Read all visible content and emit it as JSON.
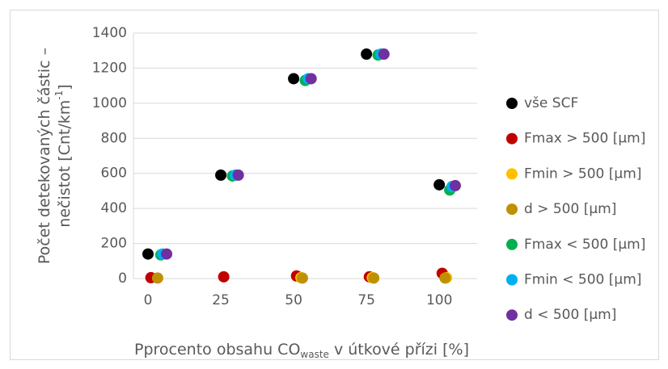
{
  "chart_data": {
    "type": "scatter",
    "y_label": [
      "Počet detekovaných částic –",
      "nečistot [Cnt/km",
      "-1",
      "]"
    ],
    "x_label": [
      "Pprocento obsahu CO",
      "waste",
      " v útkové přízi [%]"
    ],
    "xlim": [
      -5,
      113
    ],
    "xticks": [
      0,
      25,
      50,
      75,
      100
    ],
    "ylim": [
      0,
      1400
    ],
    "yticks": [
      0,
      200,
      400,
      600,
      800,
      1000,
      1200,
      1400
    ],
    "grid": true,
    "legend": "right",
    "series": [
      {
        "name": "vše SCF",
        "color": "#000000",
        "x": [
          0,
          25,
          50,
          75,
          100
        ],
        "values": [
          140,
          590,
          1140,
          1280,
          535
        ]
      },
      {
        "name": "Fmax > 500 [µm]",
        "color": "#c00000",
        "x": [
          1,
          26,
          51,
          76,
          101
        ],
        "values": [
          5,
          10,
          15,
          10,
          30
        ]
      },
      {
        "name": "Fmin > 500 [µm]",
        "color": "#ffc000",
        "x": [
          52.5,
          77,
          102.5
        ],
        "values": [
          5,
          5,
          5
        ]
      },
      {
        "name": "d > 500 [µm]",
        "color": "#bf9000",
        "x": [
          3.3,
          53,
          77.5,
          102
        ],
        "values": [
          3,
          3,
          3,
          3
        ]
      },
      {
        "name": "Fmax < 500 [µm]",
        "color": "#00b050",
        "x": [
          4.4,
          29,
          54,
          79,
          103.6
        ],
        "values": [
          135,
          585,
          1130,
          1275,
          505
        ]
      },
      {
        "name": "Fmin  < 500 [µm]",
        "color": "#00b0f0",
        "x": [
          5,
          30,
          55,
          80,
          104.4
        ],
        "values": [
          140,
          590,
          1140,
          1280,
          525
        ]
      },
      {
        "name": "d < 500 [µm]",
        "color": "#7030a0",
        "x": [
          6.4,
          31,
          56,
          81,
          105.5
        ],
        "values": [
          140,
          590,
          1140,
          1280,
          530
        ]
      }
    ]
  }
}
